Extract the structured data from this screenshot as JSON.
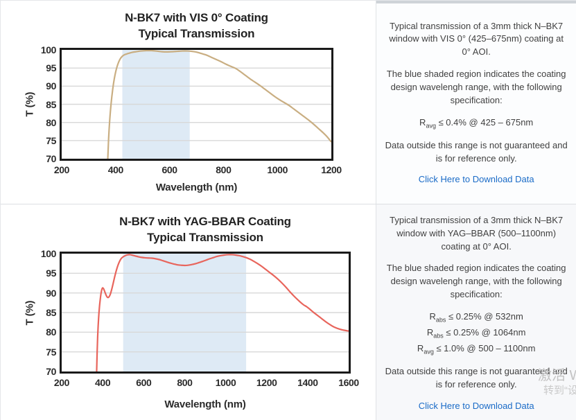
{
  "colors": {
    "link": "#1a6bc7",
    "band": "#deeaf5",
    "grid": "#d8d8d8",
    "plot_border": "#1a1a1a",
    "curve_vis": "#c9ae82",
    "curve_yag": "#e8655c"
  },
  "chart_data": [
    {
      "type": "line",
      "title_line1": "N-BK7 with VIS 0° Coating",
      "title_line2": "Typical Transmission",
      "xlabel": "Wavelength (nm)",
      "ylabel": "T (%)",
      "xlim": [
        200,
        1200
      ],
      "ylim": [
        70,
        100
      ],
      "x_ticks": [
        200,
        400,
        600,
        800,
        1000,
        1200
      ],
      "y_ticks": [
        70,
        75,
        80,
        85,
        90,
        95,
        100
      ],
      "grid": "horizontal",
      "legend": "none",
      "band_nm": [
        425,
        675
      ],
      "band_color": "#deeaf5",
      "line_color": "#c9ae82",
      "series": [
        {
          "name": "Typical Transmission",
          "points": [
            [
              368,
              63
            ],
            [
              371,
              70
            ],
            [
              374,
              75.5
            ],
            [
              378,
              80.5
            ],
            [
              383,
              85
            ],
            [
              389,
              89
            ],
            [
              395,
              92
            ],
            [
              401,
              94.2
            ],
            [
              408,
              96
            ],
            [
              416,
              97.4
            ],
            [
              424,
              98.2
            ],
            [
              434,
              98.7
            ],
            [
              446,
              99.0
            ],
            [
              460,
              99.3
            ],
            [
              476,
              99.5
            ],
            [
              494,
              99.7
            ],
            [
              514,
              99.8
            ],
            [
              534,
              99.8
            ],
            [
              554,
              99.65
            ],
            [
              572,
              99.5
            ],
            [
              590,
              99.45
            ],
            [
              608,
              99.5
            ],
            [
              628,
              99.6
            ],
            [
              648,
              99.7
            ],
            [
              666,
              99.7
            ],
            [
              682,
              99.6
            ],
            [
              700,
              99.4
            ],
            [
              718,
              99.0
            ],
            [
              736,
              98.6
            ],
            [
              754,
              98.0
            ],
            [
              772,
              97.4
            ],
            [
              790,
              96.8
            ],
            [
              808,
              96.1
            ],
            [
              826,
              95.5
            ],
            [
              845,
              94.9
            ],
            [
              863,
              94.0
            ],
            [
              881,
              93.0
            ],
            [
              899,
              92.0
            ],
            [
              917,
              91.1
            ],
            [
              935,
              90.2
            ],
            [
              953,
              89.2
            ],
            [
              971,
              88.2
            ],
            [
              989,
              87.2
            ],
            [
              1007,
              86.3
            ],
            [
              1025,
              85.5
            ],
            [
              1043,
              84.7
            ],
            [
              1061,
              83.7
            ],
            [
              1079,
              82.7
            ],
            [
              1097,
              81.7
            ],
            [
              1115,
              80.7
            ],
            [
              1133,
              79.6
            ],
            [
              1151,
              78.4
            ],
            [
              1169,
              77.2
            ],
            [
              1185,
              76.0
            ],
            [
              1200,
              74.6
            ]
          ]
        }
      ]
    },
    {
      "type": "line",
      "title_line1": "N-BK7 with YAG-BBAR Coating",
      "title_line2": "Typical Transmission",
      "xlabel": "Wavelength (nm)",
      "ylabel": "T (%)",
      "xlim": [
        200,
        1600
      ],
      "ylim": [
        70,
        100
      ],
      "x_ticks": [
        200,
        400,
        600,
        800,
        1000,
        1200,
        1400,
        1600
      ],
      "y_ticks": [
        70,
        75,
        80,
        85,
        90,
        95,
        100
      ],
      "grid": "horizontal",
      "legend": "none",
      "band_nm": [
        500,
        1100
      ],
      "band_color": "#deeaf5",
      "line_color": "#e8655c",
      "series": [
        {
          "name": "Typical Transmission",
          "points": [
            [
              367,
              62
            ],
            [
              370,
              69
            ],
            [
              373,
              75
            ],
            [
              376,
              79.5
            ],
            [
              380,
              83.5
            ],
            [
              384,
              86.3
            ],
            [
              388,
              88.3
            ],
            [
              392,
              89.9
            ],
            [
              396,
              90.9
            ],
            [
              400,
              91.3
            ],
            [
              405,
              91.0
            ],
            [
              411,
              90.2
            ],
            [
              417,
              89.4
            ],
            [
              423,
              88.9
            ],
            [
              429,
              88.9
            ],
            [
              436,
              89.5
            ],
            [
              443,
              90.7
            ],
            [
              451,
              92.4
            ],
            [
              459,
              94.2
            ],
            [
              467,
              95.8
            ],
            [
              475,
              97.1
            ],
            [
              483,
              98.1
            ],
            [
              491,
              98.8
            ],
            [
              500,
              99.2
            ],
            [
              510,
              99.5
            ],
            [
              521,
              99.7
            ],
            [
              533,
              99.75
            ],
            [
              546,
              99.6
            ],
            [
              560,
              99.4
            ],
            [
              575,
              99.2
            ],
            [
              590,
              99.05
            ],
            [
              606,
              98.95
            ],
            [
              622,
              98.9
            ],
            [
              640,
              98.85
            ],
            [
              658,
              98.7
            ],
            [
              676,
              98.5
            ],
            [
              694,
              98.2
            ],
            [
              712,
              97.9
            ],
            [
              730,
              97.6
            ],
            [
              748,
              97.35
            ],
            [
              766,
              97.15
            ],
            [
              784,
              97.05
            ],
            [
              800,
              97.0
            ],
            [
              816,
              97.05
            ],
            [
              832,
              97.2
            ],
            [
              850,
              97.4
            ],
            [
              868,
              97.7
            ],
            [
              886,
              98.0
            ],
            [
              904,
              98.35
            ],
            [
              922,
              98.7
            ],
            [
              940,
              99.0
            ],
            [
              958,
              99.3
            ],
            [
              976,
              99.5
            ],
            [
              994,
              99.65
            ],
            [
              1012,
              99.75
            ],
            [
              1030,
              99.75
            ],
            [
              1048,
              99.65
            ],
            [
              1066,
              99.5
            ],
            [
              1084,
              99.25
            ],
            [
              1100,
              99.0
            ],
            [
              1118,
              98.6
            ],
            [
              1136,
              98.1
            ],
            [
              1155,
              97.5
            ],
            [
              1175,
              96.8
            ],
            [
              1195,
              96.0
            ],
            [
              1215,
              95.2
            ],
            [
              1235,
              94.4
            ],
            [
              1255,
              93.5
            ],
            [
              1275,
              92.5
            ],
            [
              1295,
              91.4
            ],
            [
              1315,
              90.2
            ],
            [
              1335,
              89.1
            ],
            [
              1355,
              88.1
            ],
            [
              1372,
              87.3
            ],
            [
              1382,
              86.9
            ],
            [
              1395,
              86.5
            ],
            [
              1412,
              85.8
            ],
            [
              1430,
              85.0
            ],
            [
              1450,
              84.2
            ],
            [
              1470,
              83.4
            ],
            [
              1490,
              82.6
            ],
            [
              1510,
              81.9
            ],
            [
              1530,
              81.3
            ],
            [
              1555,
              80.8
            ],
            [
              1578,
              80.5
            ],
            [
              1600,
              80.3
            ]
          ]
        }
      ]
    }
  ],
  "panels": [
    {
      "para1": "Typical transmission of a 3mm thick N–BK7 window with VIS 0° (425–675nm) coating at 0° AOI.",
      "para2": "The blue shaded region indicates the coating design wavelengh range, with the following specification:",
      "specs": [
        {
          "base": "R",
          "sub": "avg",
          "rest": "≤ 0.4% @ 425 – 675nm"
        }
      ],
      "para3": "Data outside this range is not guaranteed and is for reference only.",
      "link": "Click Here to Download Data"
    },
    {
      "para1": "Typical transmission of a 3mm thick N–BK7 window with YAG–BBAR (500–1100nm) coating at 0° AOI.",
      "para2": "The blue shaded region indicates the coating design wavelengh range, with the following specification:",
      "specs": [
        {
          "base": "R",
          "sub": "abs",
          "rest": "≤ 0.25% @ 532nm"
        },
        {
          "base": "R",
          "sub": "abs",
          "rest": "≤ 0.25% @ 1064nm"
        },
        {
          "base": "R",
          "sub": "avg",
          "rest": "≤ 1.0% @ 500 – 1100nm"
        }
      ],
      "para3": "Data outside this range is not guaranteed and is for reference only.",
      "link": "Click Here to Download Data"
    }
  ],
  "watermark": {
    "line1": "激活 W",
    "line2": "转到“设"
  }
}
